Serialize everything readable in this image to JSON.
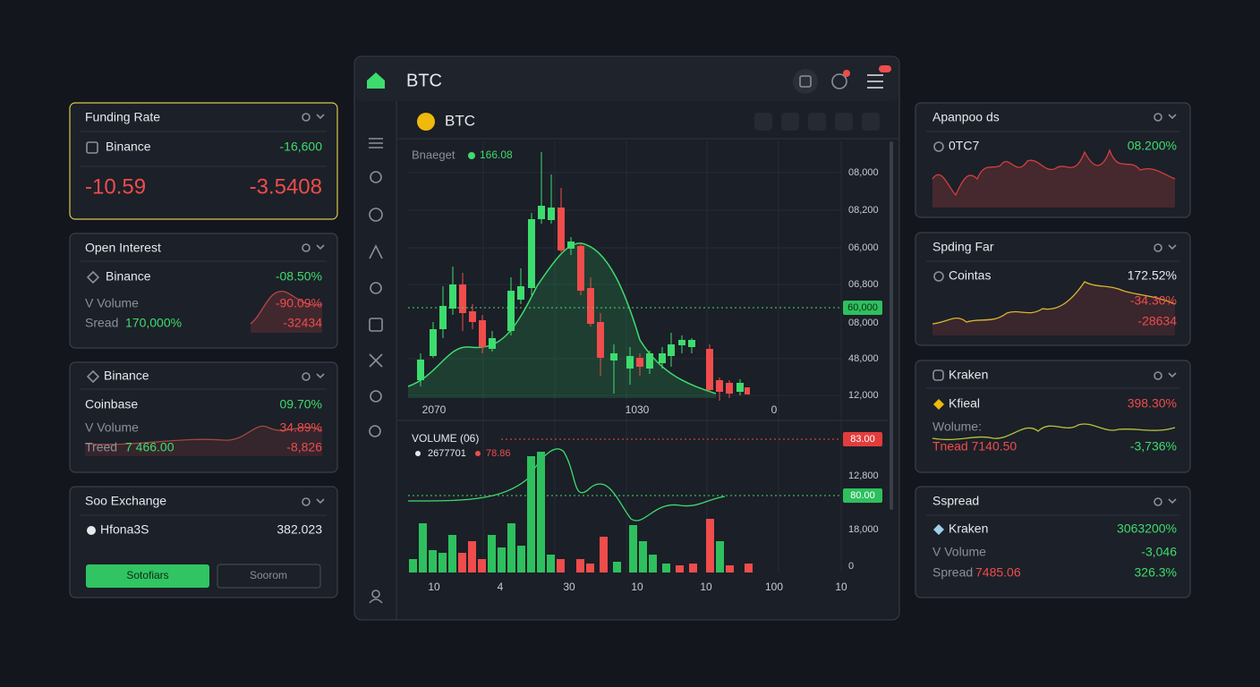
{
  "left_panels": [
    {
      "title": "Funding Rate",
      "row_label": "Binance",
      "row_value": "-16,600",
      "big_left": "-10.59",
      "big_right": "-3.5408"
    },
    {
      "title": "Open Interest",
      "row_label": "Binance",
      "row_value": "-08.50%",
      "volume_label": "V Volume",
      "volume_value": "-90.09%",
      "spread_label": "Sread",
      "spread_value": "170,000%",
      "spread_change": "-32434"
    },
    {
      "title": "Binance",
      "row_label": "Coinbase",
      "row_value": "09.70%",
      "volume_label": "V Volume",
      "volume_value": "34.89%",
      "spread_label": "Treed",
      "spread_value": "7 466.00",
      "spread_change": "-8,826"
    },
    {
      "title": "Soo Exchange",
      "row_label": "Hfona3S",
      "row_value": "382.023",
      "button_primary": "Sotofiars",
      "button_secondary": "Soorom"
    }
  ],
  "center": {
    "title": "BTC",
    "chart_title": "BTC",
    "legend_label": "Bnaeget",
    "legend_value": "166.08",
    "price_labels": [
      "08,000",
      "08,200",
      "06,000",
      "06,800",
      "60,000",
      "08,000",
      "48,000",
      "12,000"
    ],
    "price_x_labels": [
      "2070",
      "1030",
      "0"
    ],
    "volume_title": "VOLUME (06)",
    "volume_value": "2677701",
    "volume_change": "78.86",
    "volume_labels": [
      "83.00",
      "12,800",
      "80.00",
      "18,000",
      "0"
    ],
    "volume_x_labels": [
      "10",
      "4",
      "30",
      "10",
      "10",
      "100",
      "10"
    ]
  },
  "right_panels": [
    {
      "title": "Apanpoo ds",
      "row_label": "0TC7",
      "row_value": "08.200%"
    },
    {
      "title": "Spding Far",
      "row_label": "Cointas",
      "row_value": "172.52%",
      "change_1": "-34.30%",
      "change_2": "-28634"
    },
    {
      "title": "Kraken",
      "row_label": "Kfieal",
      "row_value": "398.30%",
      "volume_label": "Wolume:",
      "spread_label": "Tnead 7140.50",
      "spread_change": "-3,736%"
    },
    {
      "title": "Sspread",
      "row_label": "Kraken",
      "row_value": "3063200%",
      "volume_label": "V Volume",
      "volume_value": "-3,046",
      "spread_label": "Spread",
      "spread_value": "7485.06",
      "spread_change": "326.3%"
    }
  ]
}
